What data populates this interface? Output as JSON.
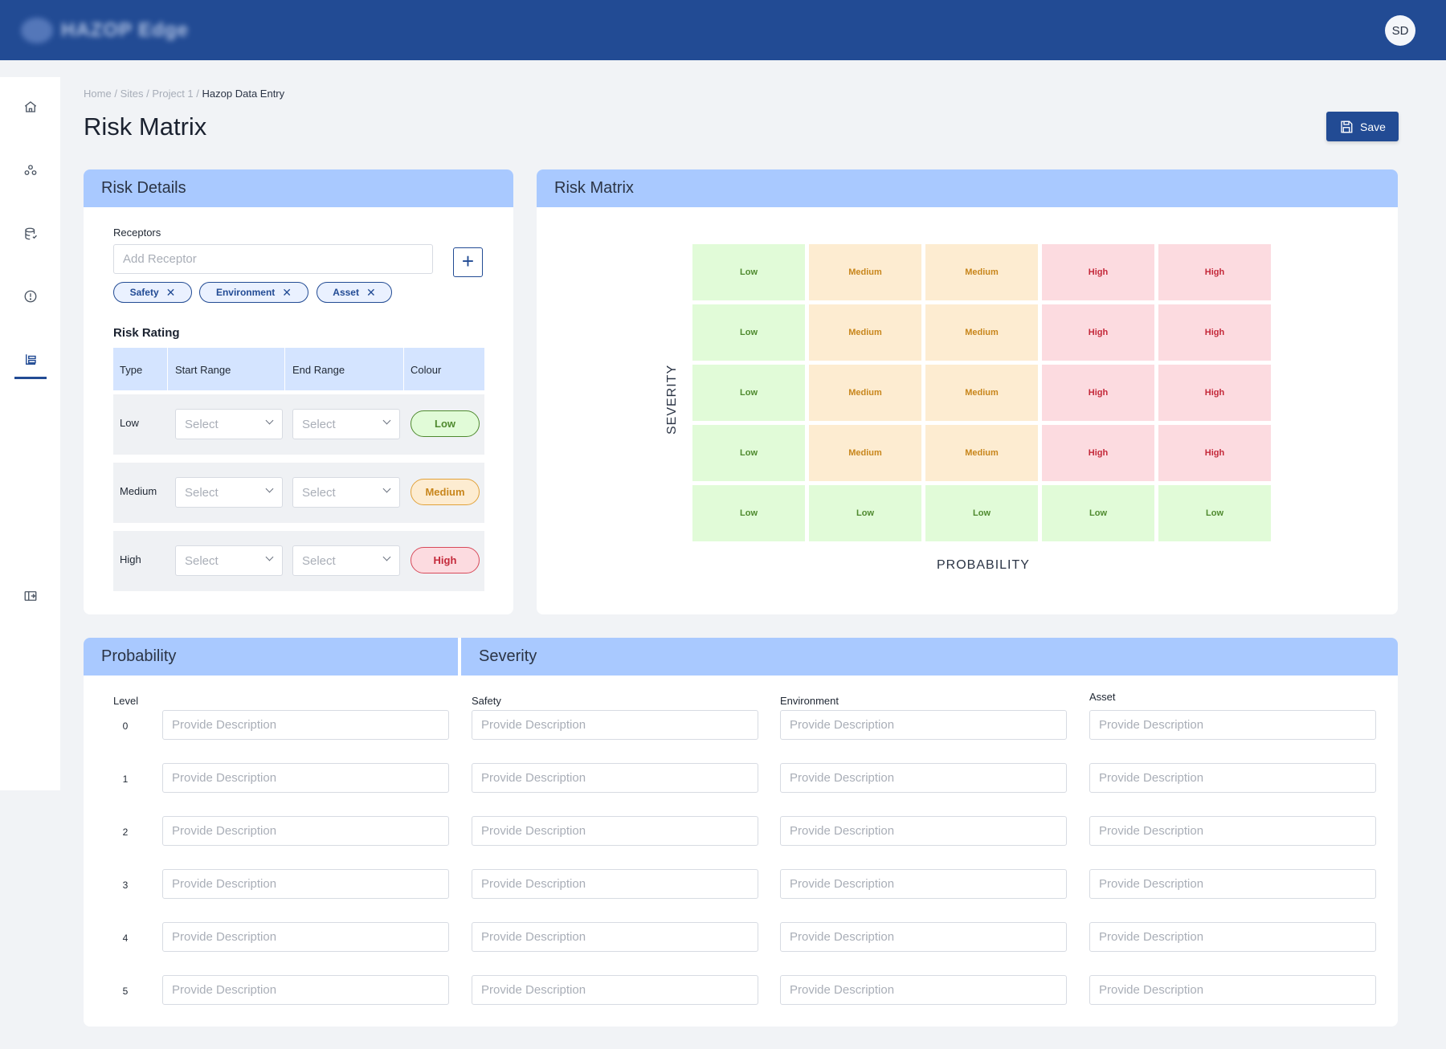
{
  "header": {
    "logo_text": "HAZOP Edge",
    "avatar_initials": "SD"
  },
  "sidebar": {
    "items": [
      {
        "icon": "home-icon"
      },
      {
        "icon": "sites-icon"
      },
      {
        "icon": "database-icon"
      },
      {
        "icon": "alert-icon"
      },
      {
        "icon": "risk-matrix-icon",
        "active": true
      },
      {
        "icon": "collapse-sidebar-icon"
      }
    ]
  },
  "breadcrumb": {
    "items": [
      "Home",
      "Sites",
      "Project 1"
    ],
    "separator": "/",
    "current": "Hazop Data Entry"
  },
  "page": {
    "title": "Risk Matrix",
    "save_label": "Save"
  },
  "risk_details": {
    "title": "Risk Details",
    "receptors_label": "Receptors",
    "receptor_placeholder": "Add Receptor",
    "receptors": [
      "Safety",
      "Environment",
      "Asset"
    ],
    "rating_title": "Risk Rating",
    "columns": [
      "Type",
      "Start Range",
      "End Range",
      "Colour"
    ],
    "select_placeholder": "Select",
    "rows": [
      {
        "type": "Low",
        "colour_label": "Low",
        "colour": "#e1fbd8",
        "border": "#4f8a2f",
        "text": "#4f8a2f"
      },
      {
        "type": "Medium",
        "colour_label": "Medium",
        "colour": "#fdecd1",
        "border": "#e1a23a",
        "text": "#c8861c"
      },
      {
        "type": "High",
        "colour_label": "High",
        "colour": "#fcdbe0",
        "border": "#d84a5a",
        "text": "#c4293a"
      }
    ]
  },
  "risk_matrix": {
    "title": "Risk Matrix",
    "y_label": "SEVERITY",
    "x_label": "PROBABILITY",
    "grid": [
      [
        "Low",
        "Medium",
        "Medium",
        "High",
        "High"
      ],
      [
        "Low",
        "Medium",
        "Medium",
        "High",
        "High"
      ],
      [
        "Low",
        "Medium",
        "Medium",
        "High",
        "High"
      ],
      [
        "Low",
        "Medium",
        "Medium",
        "High",
        "High"
      ],
      [
        "Low",
        "Low",
        "Low",
        "Low",
        "Low"
      ]
    ]
  },
  "probability": {
    "title": "Probability",
    "level_label": "Level",
    "levels": [
      "0",
      "1",
      "2",
      "3",
      "4",
      "5"
    ],
    "placeholder": "Provide Description"
  },
  "severity": {
    "title": "Severity",
    "columns": [
      "Safety",
      "Environment",
      "Asset"
    ],
    "placeholder": "Provide Description"
  }
}
